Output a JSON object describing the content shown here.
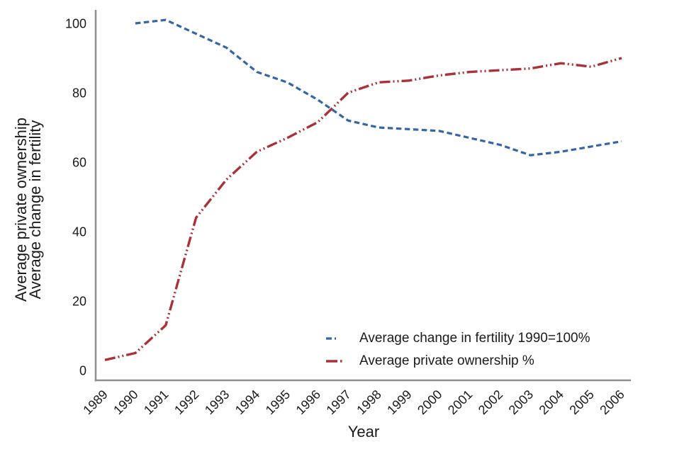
{
  "chart_data": {
    "type": "line",
    "title": "",
    "xlabel": "Year",
    "ylabel_lines": [
      "Average private ownership",
      "Average change in fertility"
    ],
    "categories": [
      1989,
      1990,
      1991,
      1992,
      1993,
      1994,
      1995,
      1996,
      1997,
      1998,
      1999,
      2000,
      2001,
      2002,
      2003,
      2004,
      2005,
      2006
    ],
    "yticks": [
      0,
      20,
      40,
      60,
      80,
      100
    ],
    "ylim": [
      0,
      105
    ],
    "grid": false,
    "legend_position": "inside-bottom-right",
    "axis_color": "#8f8f8f",
    "text_color": "#1a1a1a",
    "series": [
      {
        "name": "Average change in fertility 1990=100%",
        "color": "#3565a6",
        "dash": "7.5 4.5",
        "marker_dash": "8 4 2 40",
        "stroke_width": 3.2,
        "values": [
          null,
          100,
          101,
          97,
          93,
          86,
          83,
          78,
          72,
          70,
          69.5,
          69,
          67,
          65,
          62,
          63,
          64.5,
          66
        ]
      },
      {
        "name": "Average private ownership %",
        "color": "#a93138",
        "dash": "15 4 2 4 2 4",
        "marker_dash": "16 4 2.5 40",
        "stroke_width": 3.4,
        "values": [
          3,
          5,
          13,
          44,
          55,
          63,
          67,
          71.5,
          80,
          83,
          83.5,
          85,
          86,
          86.5,
          87,
          88.5,
          87.5,
          90
        ]
      }
    ]
  }
}
